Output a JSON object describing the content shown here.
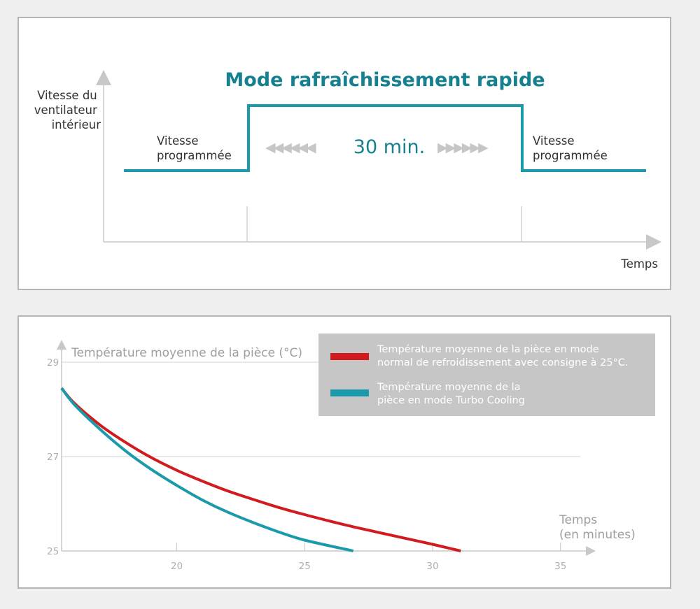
{
  "colors": {
    "teal": "#1a9aab",
    "title_teal": "#16808e",
    "red": "#d11b1f",
    "axis_gray": "#c8c8c8",
    "legend_bg": "#c6c6c6"
  },
  "top": {
    "title": "Mode rafraîchissement rapide",
    "ylabel": [
      "Vitesse du",
      "ventilateur",
      "intérieur"
    ],
    "left_label": [
      "Vitesse",
      "programmée"
    ],
    "right_label": [
      "Vitesse",
      "programmée"
    ],
    "duration": "30 min.",
    "xlabel": "Temps",
    "arrows_left": "◀◀◀◀◀◀",
    "arrows_right": "▶▶▶▶▶▶"
  },
  "chart_data": {
    "type": "line",
    "ylabel": "Température moyenne de la pièce (°C)",
    "xlabel": [
      "Temps",
      "(en minutes)"
    ],
    "xticks": [
      20,
      25,
      30,
      35
    ],
    "yticks": [
      25,
      27,
      29
    ],
    "xlim": [
      15.5,
      36
    ],
    "ylim": [
      25,
      29
    ],
    "grid": "horizontal",
    "legend_position": "top-right",
    "series": [
      {
        "name": "Température moyenne de la pièce en mode normal de refroidissement avec consigne à 25°C.",
        "legend_lines": [
          "Température moyenne de la pièce en mode",
          "normal de refroidissement avec consigne à 25°C."
        ],
        "color": "#d11b1f",
        "x": [
          15.5,
          16,
          17,
          18,
          19,
          20,
          21,
          22,
          23,
          24,
          25,
          26,
          27,
          28,
          29,
          30,
          31.1
        ],
        "y": [
          28.45,
          28.13,
          27.67,
          27.3,
          26.98,
          26.71,
          26.48,
          26.27,
          26.09,
          25.92,
          25.77,
          25.63,
          25.5,
          25.38,
          25.26,
          25.14,
          25.0
        ]
      },
      {
        "name": "Température moyenne de la pièce en mode Turbo Cooling",
        "legend_lines": [
          "Température moyenne de la",
          "pièce en mode Turbo Cooling"
        ],
        "color": "#1a9aab",
        "x": [
          15.5,
          16,
          17,
          18,
          19,
          20,
          21,
          22,
          23,
          24,
          25,
          26.9
        ],
        "y": [
          28.45,
          28.1,
          27.58,
          27.12,
          26.73,
          26.39,
          26.08,
          25.82,
          25.6,
          25.4,
          25.23,
          25.0
        ]
      }
    ]
  }
}
